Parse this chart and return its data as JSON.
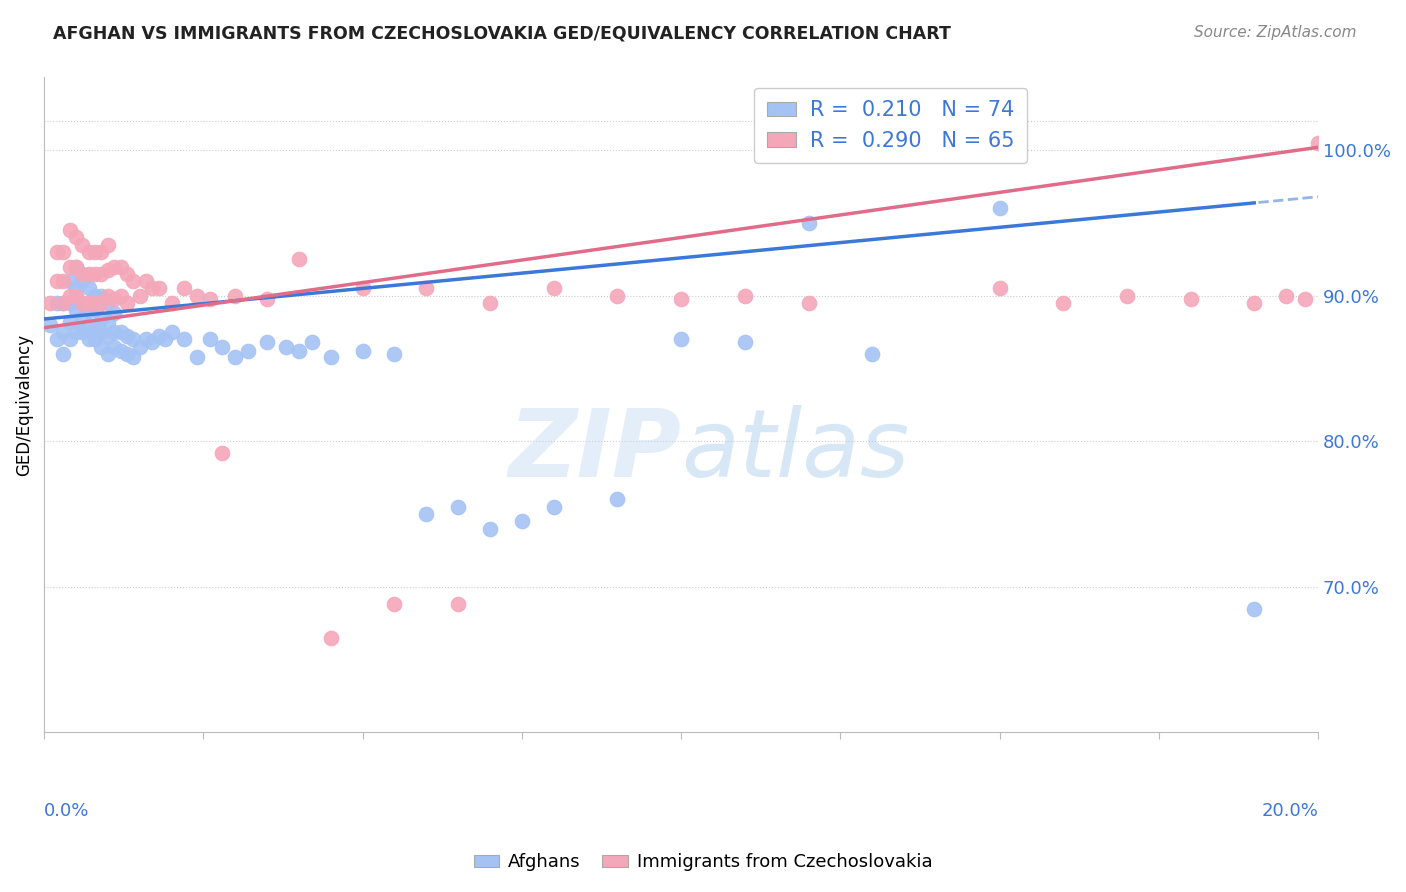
{
  "title": "AFGHAN VS IMMIGRANTS FROM CZECHOSLOVAKIA GED/EQUIVALENCY CORRELATION CHART",
  "source": "Source: ZipAtlas.com",
  "ylabel": "GED/Equivalency",
  "legend_label1": "Afghans",
  "legend_label2": "Immigrants from Czechoslovakia",
  "blue_color": "#a4c2f4",
  "pink_color": "#f4a7b9",
  "blue_line_color": "#3c78d8",
  "pink_line_color": "#e06c8a",
  "x_min": 0.0,
  "x_max": 0.2,
  "y_min": 0.6,
  "y_max": 1.05,
  "ylabel_right_values": [
    0.7,
    0.8,
    0.9,
    1.0
  ],
  "blue_scatter_x": [
    0.001,
    0.002,
    0.002,
    0.003,
    0.003,
    0.003,
    0.004,
    0.004,
    0.004,
    0.004,
    0.005,
    0.005,
    0.005,
    0.005,
    0.006,
    0.006,
    0.006,
    0.006,
    0.007,
    0.007,
    0.007,
    0.007,
    0.008,
    0.008,
    0.008,
    0.008,
    0.009,
    0.009,
    0.009,
    0.009,
    0.01,
    0.01,
    0.01,
    0.01,
    0.011,
    0.011,
    0.011,
    0.012,
    0.012,
    0.013,
    0.013,
    0.014,
    0.014,
    0.015,
    0.016,
    0.017,
    0.018,
    0.019,
    0.02,
    0.022,
    0.024,
    0.026,
    0.028,
    0.03,
    0.032,
    0.035,
    0.038,
    0.04,
    0.042,
    0.045,
    0.05,
    0.055,
    0.06,
    0.065,
    0.07,
    0.075,
    0.08,
    0.09,
    0.1,
    0.11,
    0.12,
    0.13,
    0.15,
    0.19
  ],
  "blue_scatter_y": [
    0.88,
    0.87,
    0.895,
    0.86,
    0.875,
    0.895,
    0.87,
    0.882,
    0.895,
    0.91,
    0.875,
    0.89,
    0.905,
    0.92,
    0.875,
    0.885,
    0.895,
    0.91,
    0.87,
    0.88,
    0.89,
    0.905,
    0.87,
    0.878,
    0.89,
    0.9,
    0.865,
    0.875,
    0.885,
    0.9,
    0.86,
    0.872,
    0.882,
    0.895,
    0.865,
    0.875,
    0.888,
    0.862,
    0.875,
    0.86,
    0.872,
    0.858,
    0.87,
    0.865,
    0.87,
    0.868,
    0.872,
    0.87,
    0.875,
    0.87,
    0.858,
    0.87,
    0.865,
    0.858,
    0.862,
    0.868,
    0.865,
    0.862,
    0.868,
    0.858,
    0.862,
    0.86,
    0.75,
    0.755,
    0.74,
    0.745,
    0.755,
    0.76,
    0.87,
    0.868,
    0.95,
    0.86,
    0.96,
    0.685
  ],
  "pink_scatter_x": [
    0.001,
    0.002,
    0.002,
    0.003,
    0.003,
    0.003,
    0.004,
    0.004,
    0.004,
    0.005,
    0.005,
    0.005,
    0.006,
    0.006,
    0.006,
    0.007,
    0.007,
    0.007,
    0.008,
    0.008,
    0.008,
    0.009,
    0.009,
    0.009,
    0.01,
    0.01,
    0.01,
    0.011,
    0.011,
    0.012,
    0.012,
    0.013,
    0.013,
    0.014,
    0.015,
    0.016,
    0.017,
    0.018,
    0.02,
    0.022,
    0.024,
    0.026,
    0.028,
    0.03,
    0.035,
    0.04,
    0.045,
    0.05,
    0.055,
    0.06,
    0.065,
    0.07,
    0.08,
    0.09,
    0.1,
    0.11,
    0.12,
    0.15,
    0.16,
    0.17,
    0.18,
    0.19,
    0.195,
    0.198,
    0.2
  ],
  "pink_scatter_y": [
    0.895,
    0.91,
    0.93,
    0.895,
    0.91,
    0.93,
    0.9,
    0.92,
    0.945,
    0.9,
    0.92,
    0.94,
    0.895,
    0.915,
    0.935,
    0.895,
    0.915,
    0.93,
    0.895,
    0.915,
    0.93,
    0.895,
    0.915,
    0.93,
    0.9,
    0.918,
    0.935,
    0.898,
    0.92,
    0.9,
    0.92,
    0.895,
    0.915,
    0.91,
    0.9,
    0.91,
    0.905,
    0.905,
    0.895,
    0.905,
    0.9,
    0.898,
    0.792,
    0.9,
    0.898,
    0.925,
    0.665,
    0.905,
    0.688,
    0.905,
    0.688,
    0.895,
    0.905,
    0.9,
    0.898,
    0.9,
    0.895,
    0.905,
    0.895,
    0.9,
    0.898,
    0.895,
    0.9,
    0.898,
    1.005
  ]
}
